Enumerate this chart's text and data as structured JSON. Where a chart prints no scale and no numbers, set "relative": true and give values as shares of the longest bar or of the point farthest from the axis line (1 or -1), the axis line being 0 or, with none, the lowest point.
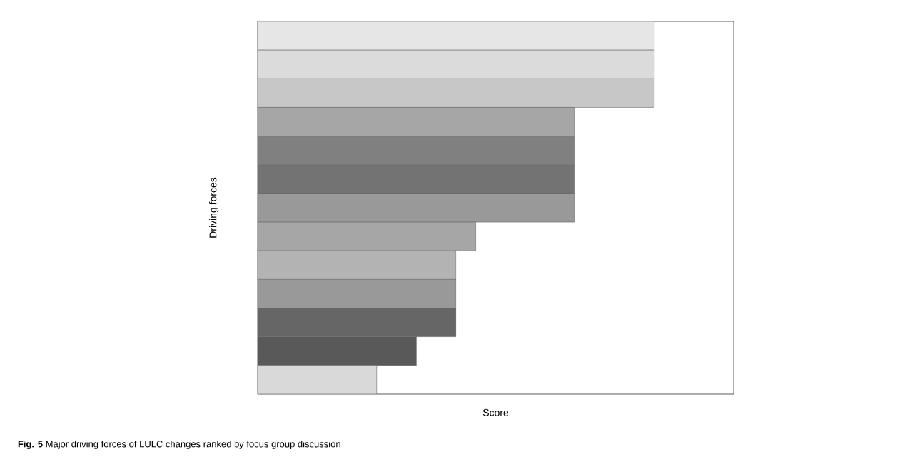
{
  "chart_data": {
    "type": "bar",
    "orientation": "horizontal",
    "relative": true,
    "xlabel": "Score",
    "ylabel": "Driving forces",
    "categories": [
      null,
      null,
      null,
      null,
      null,
      null,
      null,
      null,
      null,
      null,
      null,
      null,
      null
    ],
    "values": [
      1,
      1,
      1,
      0.8,
      0.8,
      0.8,
      0.8,
      0.55,
      0.5,
      0.5,
      0.5,
      0.4,
      0.3
    ],
    "colors": [
      "#e6e6e6",
      "#dbdbdb",
      "#c7c7c7",
      "#a6a6a6",
      "#808080",
      "#737373",
      "#999999",
      "#a6a6a6",
      "#b3b3b3",
      "#999999",
      "#666666",
      "#595959",
      "#d9d9d9"
    ],
    "annotations": [
      "**Fig. 5** Major driving forces of LULC changes ranked by focus group discussion"
    ]
  }
}
